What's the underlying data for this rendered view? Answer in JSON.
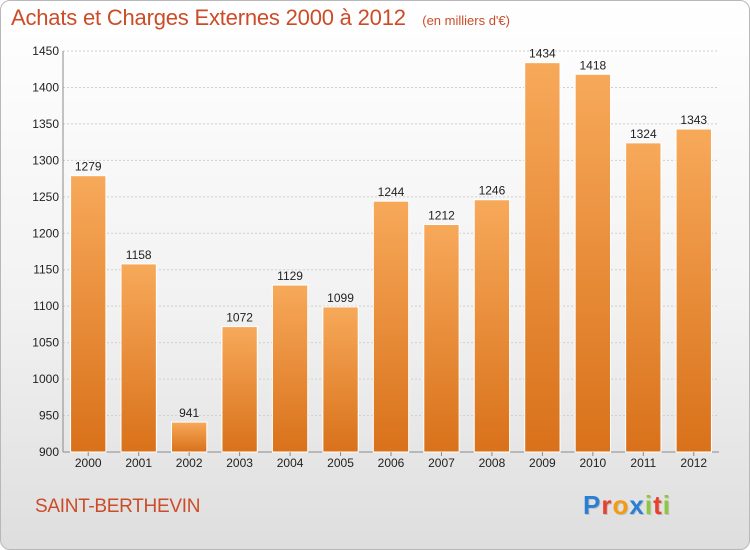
{
  "header": {
    "title": "Achats et Charges Externes 2000 à 2012",
    "subtitle": "(en milliers d'€)"
  },
  "footer": {
    "city": "SAINT-BERTHEVIN",
    "logo_text": "Proxiti",
    "logo_colors": [
      "#2a7fd4",
      "#e7402f",
      "#f39c12",
      "#2a7fd4",
      "#8dc63f",
      "#e7402f",
      "#8dc63f"
    ]
  },
  "colors": {
    "bar_light": "#f7a95a",
    "bar_dark": "#d9711a",
    "grid": "#d0d0d0",
    "title": "#cc4c28"
  },
  "chart_data": {
    "type": "bar",
    "title": "Achats et Charges Externes 2000 à 2012",
    "subtitle": "(en milliers d'€)",
    "categories": [
      "2000",
      "2001",
      "2002",
      "2003",
      "2004",
      "2005",
      "2006",
      "2007",
      "2008",
      "2009",
      "2010",
      "2011",
      "2012"
    ],
    "values": [
      1279,
      1158,
      941,
      1072,
      1129,
      1099,
      1244,
      1212,
      1246,
      1434,
      1418,
      1324,
      1343
    ],
    "ylim": [
      900,
      1450
    ],
    "yticks": [
      900,
      950,
      1000,
      1050,
      1100,
      1150,
      1200,
      1250,
      1300,
      1350,
      1400,
      1450
    ],
    "grid": true,
    "data_labels": true
  }
}
